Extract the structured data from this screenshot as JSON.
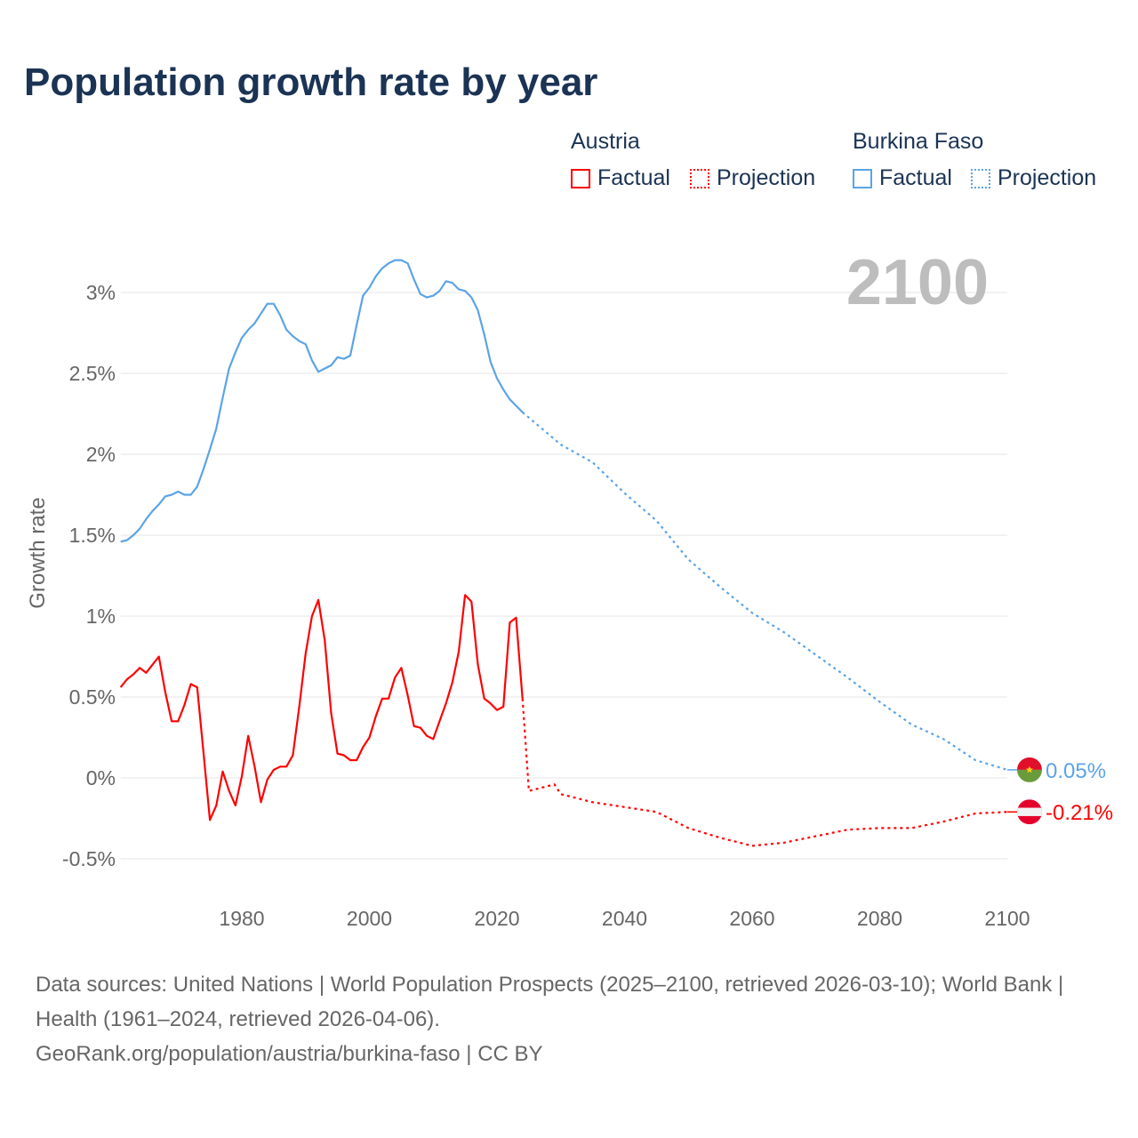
{
  "title": "Population growth rate by year",
  "legend": {
    "groups": [
      {
        "name": "Austria",
        "factual": "Factual",
        "projection": "Projection",
        "color": "#ff0000"
      },
      {
        "name": "Burkina Faso",
        "factual": "Factual",
        "projection": "Projection",
        "color": "#5ba4e6"
      }
    ]
  },
  "year_label": "2100",
  "footer": {
    "sources": "Data sources: United Nations | World Population Prospects (2025–2100, retrieved 2026-03-10); World Bank | Health (1961–2024, retrieved 2026-04-06).",
    "credit": "GeoRank.org/population/austria/burkina-faso | CC BY"
  },
  "chart_data": {
    "type": "line",
    "title": "Population growth rate by year",
    "xlabel": "",
    "ylabel": "Growth rate",
    "xlim": [
      1961,
      2100
    ],
    "ylim": [
      -0.7,
      3.3
    ],
    "xticks": [
      1980,
      2000,
      2020,
      2040,
      2060,
      2080,
      2100
    ],
    "yticks": [
      -0.5,
      0,
      0.5,
      1,
      1.5,
      2,
      2.5,
      3
    ],
    "ytick_labels": [
      "-0.5%",
      "0%",
      "0.5%",
      "1%",
      "1.5%",
      "2%",
      "2.5%",
      "3%"
    ],
    "grid": true,
    "legend_position": "top-right",
    "series": [
      {
        "name": "Austria",
        "color": "#ff0000",
        "end_label": "-0.21%",
        "flag": "austria-flag",
        "factual_start": 1961,
        "factual": [
          0.56,
          0.61,
          0.64,
          0.68,
          0.65,
          0.7,
          0.75,
          0.53,
          0.35,
          0.35,
          0.45,
          0.58,
          0.56,
          0.15,
          -0.26,
          -0.17,
          0.04,
          -0.08,
          -0.17,
          0.01,
          0.26,
          0.07,
          -0.15,
          -0.01,
          0.05,
          0.07,
          0.07,
          0.14,
          0.44,
          0.77,
          1.0,
          1.1,
          0.85,
          0.4,
          0.15,
          0.14,
          0.11,
          0.11,
          0.19,
          0.25,
          0.38,
          0.49,
          0.49,
          0.62,
          0.68,
          0.51,
          0.32,
          0.31,
          0.26,
          0.24,
          0.35,
          0.46,
          0.59,
          0.78,
          1.13,
          1.09,
          0.7,
          0.49,
          0.46,
          0.42,
          0.44,
          0.96,
          0.99,
          0.49
        ],
        "projection_x": [
          2024,
          2025,
          2029,
          2030,
          2035,
          2040,
          2045,
          2050,
          2055,
          2060,
          2065,
          2070,
          2075,
          2080,
          2085,
          2090,
          2095,
          2100
        ],
        "projection": [
          0.49,
          -0.08,
          -0.04,
          -0.1,
          -0.15,
          -0.18,
          -0.21,
          -0.31,
          -0.37,
          -0.42,
          -0.4,
          -0.36,
          -0.32,
          -0.31,
          -0.31,
          -0.27,
          -0.22,
          -0.21
        ]
      },
      {
        "name": "Burkina Faso",
        "color": "#5ba4e6",
        "end_label": "0.05%",
        "flag": "burkina-faso-flag",
        "factual_start": 1961,
        "factual": [
          1.46,
          1.47,
          1.5,
          1.54,
          1.6,
          1.65,
          1.69,
          1.74,
          1.75,
          1.77,
          1.75,
          1.75,
          1.8,
          1.91,
          2.03,
          2.16,
          2.35,
          2.53,
          2.63,
          2.72,
          2.77,
          2.81,
          2.87,
          2.93,
          2.93,
          2.86,
          2.77,
          2.73,
          2.7,
          2.68,
          2.58,
          2.51,
          2.53,
          2.55,
          2.6,
          2.59,
          2.61,
          2.8,
          2.98,
          3.03,
          3.1,
          3.15,
          3.18,
          3.2,
          3.2,
          3.18,
          3.08,
          2.99,
          2.97,
          2.98,
          3.01,
          3.07,
          3.06,
          3.02,
          3.01,
          2.97,
          2.89,
          2.74,
          2.57,
          2.47,
          2.4,
          2.34,
          2.3,
          2.26
        ],
        "projection_x": [
          2024,
          2030,
          2035,
          2040,
          2045,
          2050,
          2055,
          2060,
          2065,
          2070,
          2075,
          2080,
          2085,
          2090,
          2095,
          2100
        ],
        "projection": [
          2.26,
          2.06,
          1.95,
          1.76,
          1.59,
          1.35,
          1.18,
          1.02,
          0.9,
          0.76,
          0.62,
          0.47,
          0.33,
          0.24,
          0.11,
          0.05
        ]
      }
    ]
  }
}
